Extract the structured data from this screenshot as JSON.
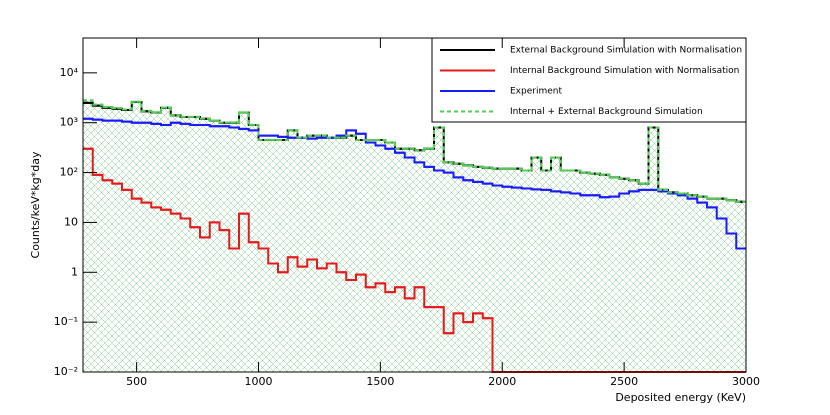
{
  "chart_data": {
    "type": "histogram",
    "xlabel": "Deposited energy (KeV)",
    "ylabel": "Counts/keV*kg*day",
    "log_y": true,
    "legend": "upper right",
    "xlim": [
      280,
      3000
    ],
    "ylim": [
      0.01,
      50000
    ],
    "xticks": [
      500,
      1000,
      1500,
      2000,
      2500,
      3000
    ],
    "yticks": [
      {
        "value": 0.01,
        "label": "10⁻²"
      },
      {
        "value": 0.1,
        "label": "10⁻¹"
      },
      1,
      10,
      {
        "value": 100,
        "label": "10²"
      },
      {
        "value": 1000,
        "label": "10³"
      },
      {
        "value": 10000,
        "label": "10⁴"
      }
    ],
    "bins": [
      280,
      320,
      360,
      400,
      440,
      480,
      520,
      560,
      600,
      640,
      680,
      720,
      760,
      800,
      840,
      880,
      920,
      960,
      1000,
      1040,
      1080,
      1120,
      1160,
      1200,
      1240,
      1280,
      1320,
      1360,
      1400,
      1440,
      1480,
      1520,
      1560,
      1600,
      1640,
      1680,
      1720,
      1760,
      1800,
      1840,
      1880,
      1920,
      1960,
      2000,
      2040,
      2080,
      2120,
      2160,
      2200,
      2240,
      2280,
      2320,
      2360,
      2400,
      2440,
      2480,
      2520,
      2560,
      2600,
      2640,
      2680,
      2720,
      2760,
      2800,
      2840,
      2880,
      2920,
      2960,
      3000
    ],
    "series": [
      {
        "name": "External Background Simulation with Normalisation",
        "color": "#000000",
        "values": [
          2500,
          2200,
          2000,
          1900,
          1800,
          2600,
          1700,
          1600,
          2000,
          1400,
          1300,
          1300,
          1200,
          1100,
          1000,
          1000,
          1600,
          900,
          450,
          450,
          450,
          700,
          500,
          550,
          550,
          500,
          500,
          550,
          450,
          450,
          450,
          400,
          300,
          300,
          280,
          300,
          800,
          160,
          150,
          140,
          130,
          125,
          120,
          120,
          120,
          110,
          200,
          110,
          200,
          110,
          110,
          100,
          95,
          90,
          80,
          75,
          70,
          60,
          800,
          45,
          40,
          38,
          35,
          33,
          30,
          30,
          28,
          26
        ]
      },
      {
        "name": "Internal Background Simulation with Normalisation",
        "color": "#e41a1c",
        "values": [
          300,
          90,
          70,
          60,
          45,
          30,
          25,
          20,
          18,
          15,
          12,
          8,
          5,
          10,
          7,
          3,
          15,
          4,
          3,
          1.5,
          1,
          2,
          1.3,
          1.8,
          1.2,
          1.5,
          1,
          0.7,
          0.9,
          0.5,
          0.6,
          0.4,
          0.5,
          0.3,
          0.5,
          0.2,
          0.2,
          0.06,
          0.15,
          0.1,
          0.15,
          0.12,
          0,
          0,
          0,
          0,
          0,
          0,
          0,
          0,
          0,
          0,
          0,
          0,
          0,
          0,
          0,
          0,
          0,
          0,
          0,
          0,
          0,
          0,
          0,
          0,
          0,
          0
        ]
      },
      {
        "name": "Experiment",
        "color": "#1a1aff",
        "values": [
          1200,
          1150,
          1100,
          1100,
          1050,
          1000,
          1000,
          950,
          900,
          1000,
          950,
          900,
          900,
          850,
          850,
          800,
          750,
          700,
          550,
          550,
          520,
          500,
          500,
          480,
          500,
          500,
          550,
          700,
          600,
          400,
          350,
          300,
          250,
          200,
          160,
          130,
          110,
          100,
          80,
          70,
          65,
          60,
          55,
          52,
          50,
          48,
          46,
          45,
          42,
          40,
          38,
          35,
          35,
          32,
          33,
          38,
          42,
          45,
          45,
          42,
          38,
          35,
          30,
          25,
          20,
          12,
          6,
          3
        ]
      },
      {
        "name": "Internal + External Background Simulation",
        "color": "#55cc55",
        "dashed": true,
        "fill": "hatch",
        "values": [
          2800,
          2300,
          2070,
          1960,
          1845,
          2630,
          1725,
          1620,
          2018,
          1415,
          1312,
          1308,
          1205,
          1110,
          1007,
          1003,
          1615,
          904,
          453,
          452,
          451,
          702,
          501,
          552,
          551,
          502,
          501,
          551,
          451,
          450,
          451,
          400,
          301,
          300,
          281,
          300,
          800,
          160,
          150,
          140,
          130,
          125,
          120,
          120,
          120,
          110,
          200,
          110,
          200,
          110,
          110,
          100,
          95,
          90,
          80,
          75,
          70,
          60,
          800,
          45,
          40,
          38,
          35,
          33,
          30,
          30,
          28,
          26
        ]
      }
    ]
  }
}
